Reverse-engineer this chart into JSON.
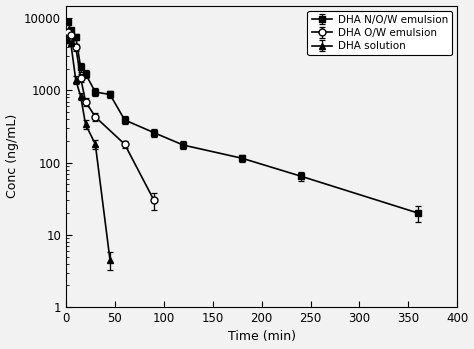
{
  "series": [
    {
      "label": "DHA N/O/W emulsion",
      "marker": "s",
      "linestyle": "-",
      "color": "black",
      "fillstyle": "full",
      "x": [
        2,
        5,
        10,
        15,
        20,
        30,
        45,
        60,
        90,
        120,
        180,
        240,
        360
      ],
      "y": [
        8800,
        6800,
        5500,
        2100,
        1700,
        950,
        880,
        390,
        260,
        175,
        115,
        65,
        20
      ],
      "yerr": [
        500,
        450,
        550,
        280,
        220,
        120,
        100,
        50,
        35,
        22,
        12,
        10,
        5
      ]
    },
    {
      "label": "DHA O/W emulsion",
      "marker": "o",
      "linestyle": "-",
      "color": "black",
      "fillstyle": "none",
      "x": [
        2,
        5,
        10,
        15,
        20,
        30,
        60,
        90
      ],
      "y": [
        6500,
        5800,
        4000,
        1500,
        700,
        430,
        180,
        30
      ],
      "yerr": [
        550,
        450,
        450,
        180,
        90,
        55,
        22,
        8
      ]
    },
    {
      "label": "DHA solution",
      "marker": "^",
      "linestyle": "-",
      "color": "black",
      "fillstyle": "full",
      "x": [
        2,
        5,
        10,
        15,
        20,
        30,
        45
      ],
      "y": [
        5000,
        4500,
        1400,
        830,
        340,
        180,
        4.5
      ],
      "yerr": [
        450,
        380,
        180,
        90,
        45,
        25,
        1.2
      ]
    }
  ],
  "xlabel": "Time (min)",
  "ylabel": "Conc (ng/mL)",
  "xlim": [
    0,
    400
  ],
  "ylim_log": [
    1,
    15000
  ],
  "xticks": [
    0,
    50,
    100,
    150,
    200,
    250,
    300,
    350,
    400
  ],
  "yticks_major": [
    1,
    10,
    100,
    1000,
    10000
  ],
  "legend_loc": "upper right",
  "background_color": "#f2f2f2",
  "grid": false,
  "figsize": [
    4.74,
    3.49
  ],
  "dpi": 100
}
